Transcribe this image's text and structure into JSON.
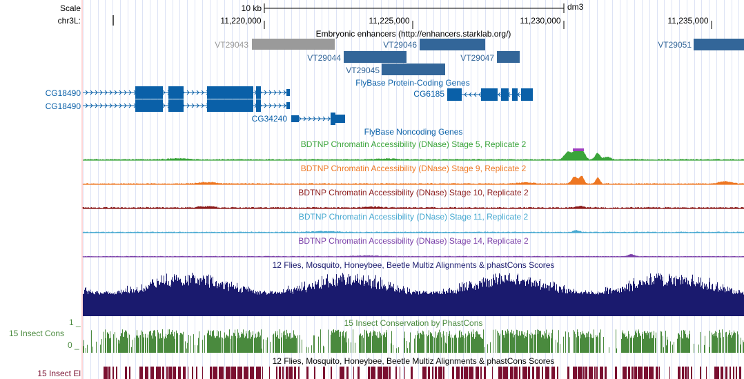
{
  "ruler": {
    "scale_label": "Scale",
    "scale_value": "10 kb",
    "assembly": "dm3",
    "chrom_label": "chr3L:",
    "ticks": [
      "11,220,000",
      "11,225,000",
      "11,230,000",
      "11,235,000"
    ]
  },
  "tracks": {
    "enhancers": {
      "title": "Embryonic enhancers (http://enhancers.starklab.org/)",
      "items": [
        {
          "label": "VT29043",
          "color": "#9a9a9a"
        },
        {
          "label": "VT29044",
          "color": "#336699"
        },
        {
          "label": "VT29045",
          "color": "#336699"
        },
        {
          "label": "VT29046",
          "color": "#336699"
        },
        {
          "label": "VT29047",
          "color": "#336699"
        },
        {
          "label": "VT29051",
          "color": "#336699"
        }
      ]
    },
    "genes": {
      "title": "FlyBase Protein-Coding Genes",
      "items": [
        {
          "label": "CG18490"
        },
        {
          "label": "CG18490"
        },
        {
          "label": "CG34240"
        },
        {
          "label": "CG6185"
        }
      ],
      "color": "#0a60a8"
    },
    "noncoding": {
      "title": "FlyBase Noncoding Genes"
    },
    "dnase": [
      {
        "title": "BDTNP Chromatin Accessibility (DNase) Stage 5, Replicate 2",
        "color": "#3aa43a"
      },
      {
        "title": "BDTNP Chromatin Accessibility (DNase) Stage 9, Replicate 2",
        "color": "#ee7722"
      },
      {
        "title": "BDTNP Chromatin Accessibility (DNase) Stage 10, Replicate 2",
        "color": "#8b1a1a"
      },
      {
        "title": "BDTNP Chromatin Accessibility (DNase) Stage 11, Replicate 2",
        "color": "#45a8d0"
      },
      {
        "title": "BDTNP Chromatin Accessibility (DNase) Stage 14, Replicate 2",
        "color": "#7a3fa8"
      }
    ],
    "multiz": {
      "title": "12 Flies, Mosquito, Honeybee, Beetle Multiz Alignments & phastCons Scores",
      "color": "#1a1a6e"
    },
    "insect_cons": {
      "side_label": "15 Insect Cons",
      "title": "15 Insect Conservation by PhastCons",
      "axis_max": "1 _",
      "axis_min": "0 _",
      "color": "#4a8a3e"
    },
    "insect_el": {
      "side_label": "15 Insect El",
      "title": "12 Flies, Mosquito, Honeybee, Beetle Multiz Alignments & phastCons Scores",
      "color": "#7a1030"
    }
  }
}
